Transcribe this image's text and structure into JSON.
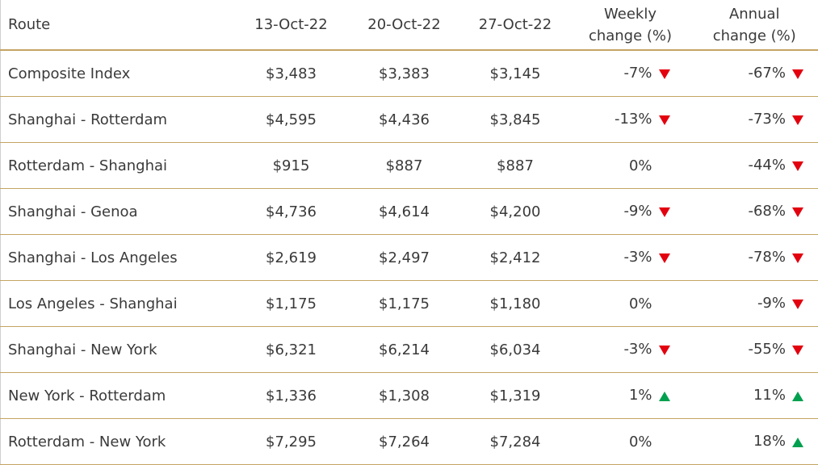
{
  "table": {
    "headers": [
      "Route",
      "13-Oct-22",
      "20-Oct-22",
      "27-Oct-22",
      "Weekly\nchange (%)",
      "Annual\nchange (%)"
    ],
    "rows": [
      [
        "Composite Index",
        "$3,483",
        "$3,383",
        "$3,145",
        "-7%",
        "-67%"
      ],
      [
        "Shanghai - Rotterdam",
        "$4,595",
        "$4,436",
        "$3,845",
        "-13%",
        "-73%"
      ],
      [
        "Rotterdam - Shanghai",
        "$915",
        "$887",
        "$887",
        "0%",
        "-44%"
      ],
      [
        "Shanghai - Genoa",
        "$4,736",
        "$4,614",
        "$4,200",
        "-9%",
        "-68%"
      ],
      [
        "Shanghai - Los Angeles",
        "$2,619",
        "$2,497",
        "$2,412",
        "-3%",
        "-78%"
      ],
      [
        "Los Angeles - Shanghai",
        "$1,175",
        "$1,175",
        "$1,180",
        "0%",
        "-9%"
      ],
      [
        "Shanghai - New York",
        "$6,321",
        "$6,214",
        "$6,034",
        "-3%",
        "-55%"
      ],
      [
        "New York - Rotterdam",
        "$1,336",
        "$1,308",
        "$1,319",
        "1%",
        "11%"
      ],
      [
        "Rotterdam - New York",
        "$7,295",
        "$7,264",
        "$7,284",
        "0%",
        "18%"
      ]
    ]
  }
}
